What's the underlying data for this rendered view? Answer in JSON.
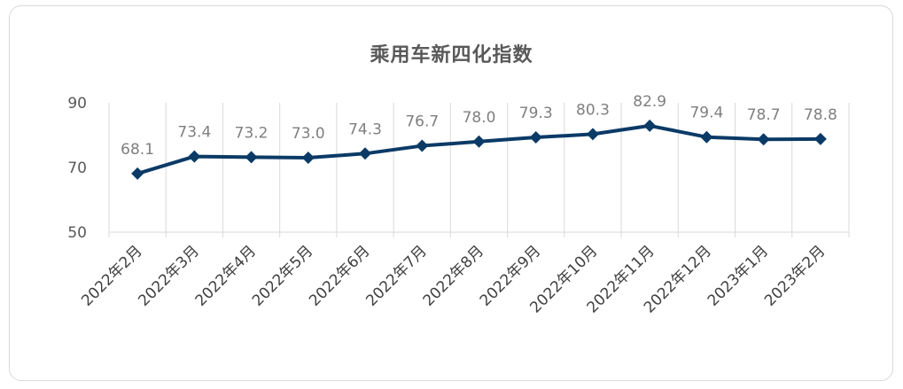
{
  "chart_data": {
    "type": "line",
    "title": "乘用车新四化指数",
    "categories": [
      "2022年2月",
      "2022年3月",
      "2022年4月",
      "2022年5月",
      "2022年6月",
      "2022年7月",
      "2022年8月",
      "2022年9月",
      "2022年10月",
      "2022年11月",
      "2022年12月",
      "2023年1月",
      "2023年2月"
    ],
    "series": [
      {
        "values": [
          68.1,
          73.4,
          73.2,
          73.0,
          74.3,
          76.7,
          78.0,
          79.3,
          80.3,
          82.9,
          79.4,
          78.7,
          78.8
        ]
      }
    ],
    "data_labels": [
      "68.1",
      "73.4",
      "73.2",
      "73.0",
      "74.3",
      "76.7",
      "78.0",
      "79.3",
      "80.3",
      "82.9",
      "79.4",
      "78.7",
      "78.8"
    ],
    "ylim": [
      50,
      90
    ],
    "yticks": [
      50,
      70,
      90
    ],
    "grid": "vertical",
    "legend": "none",
    "line_color": "#0b3a66",
    "grid_color": "#d9d9d9"
  }
}
